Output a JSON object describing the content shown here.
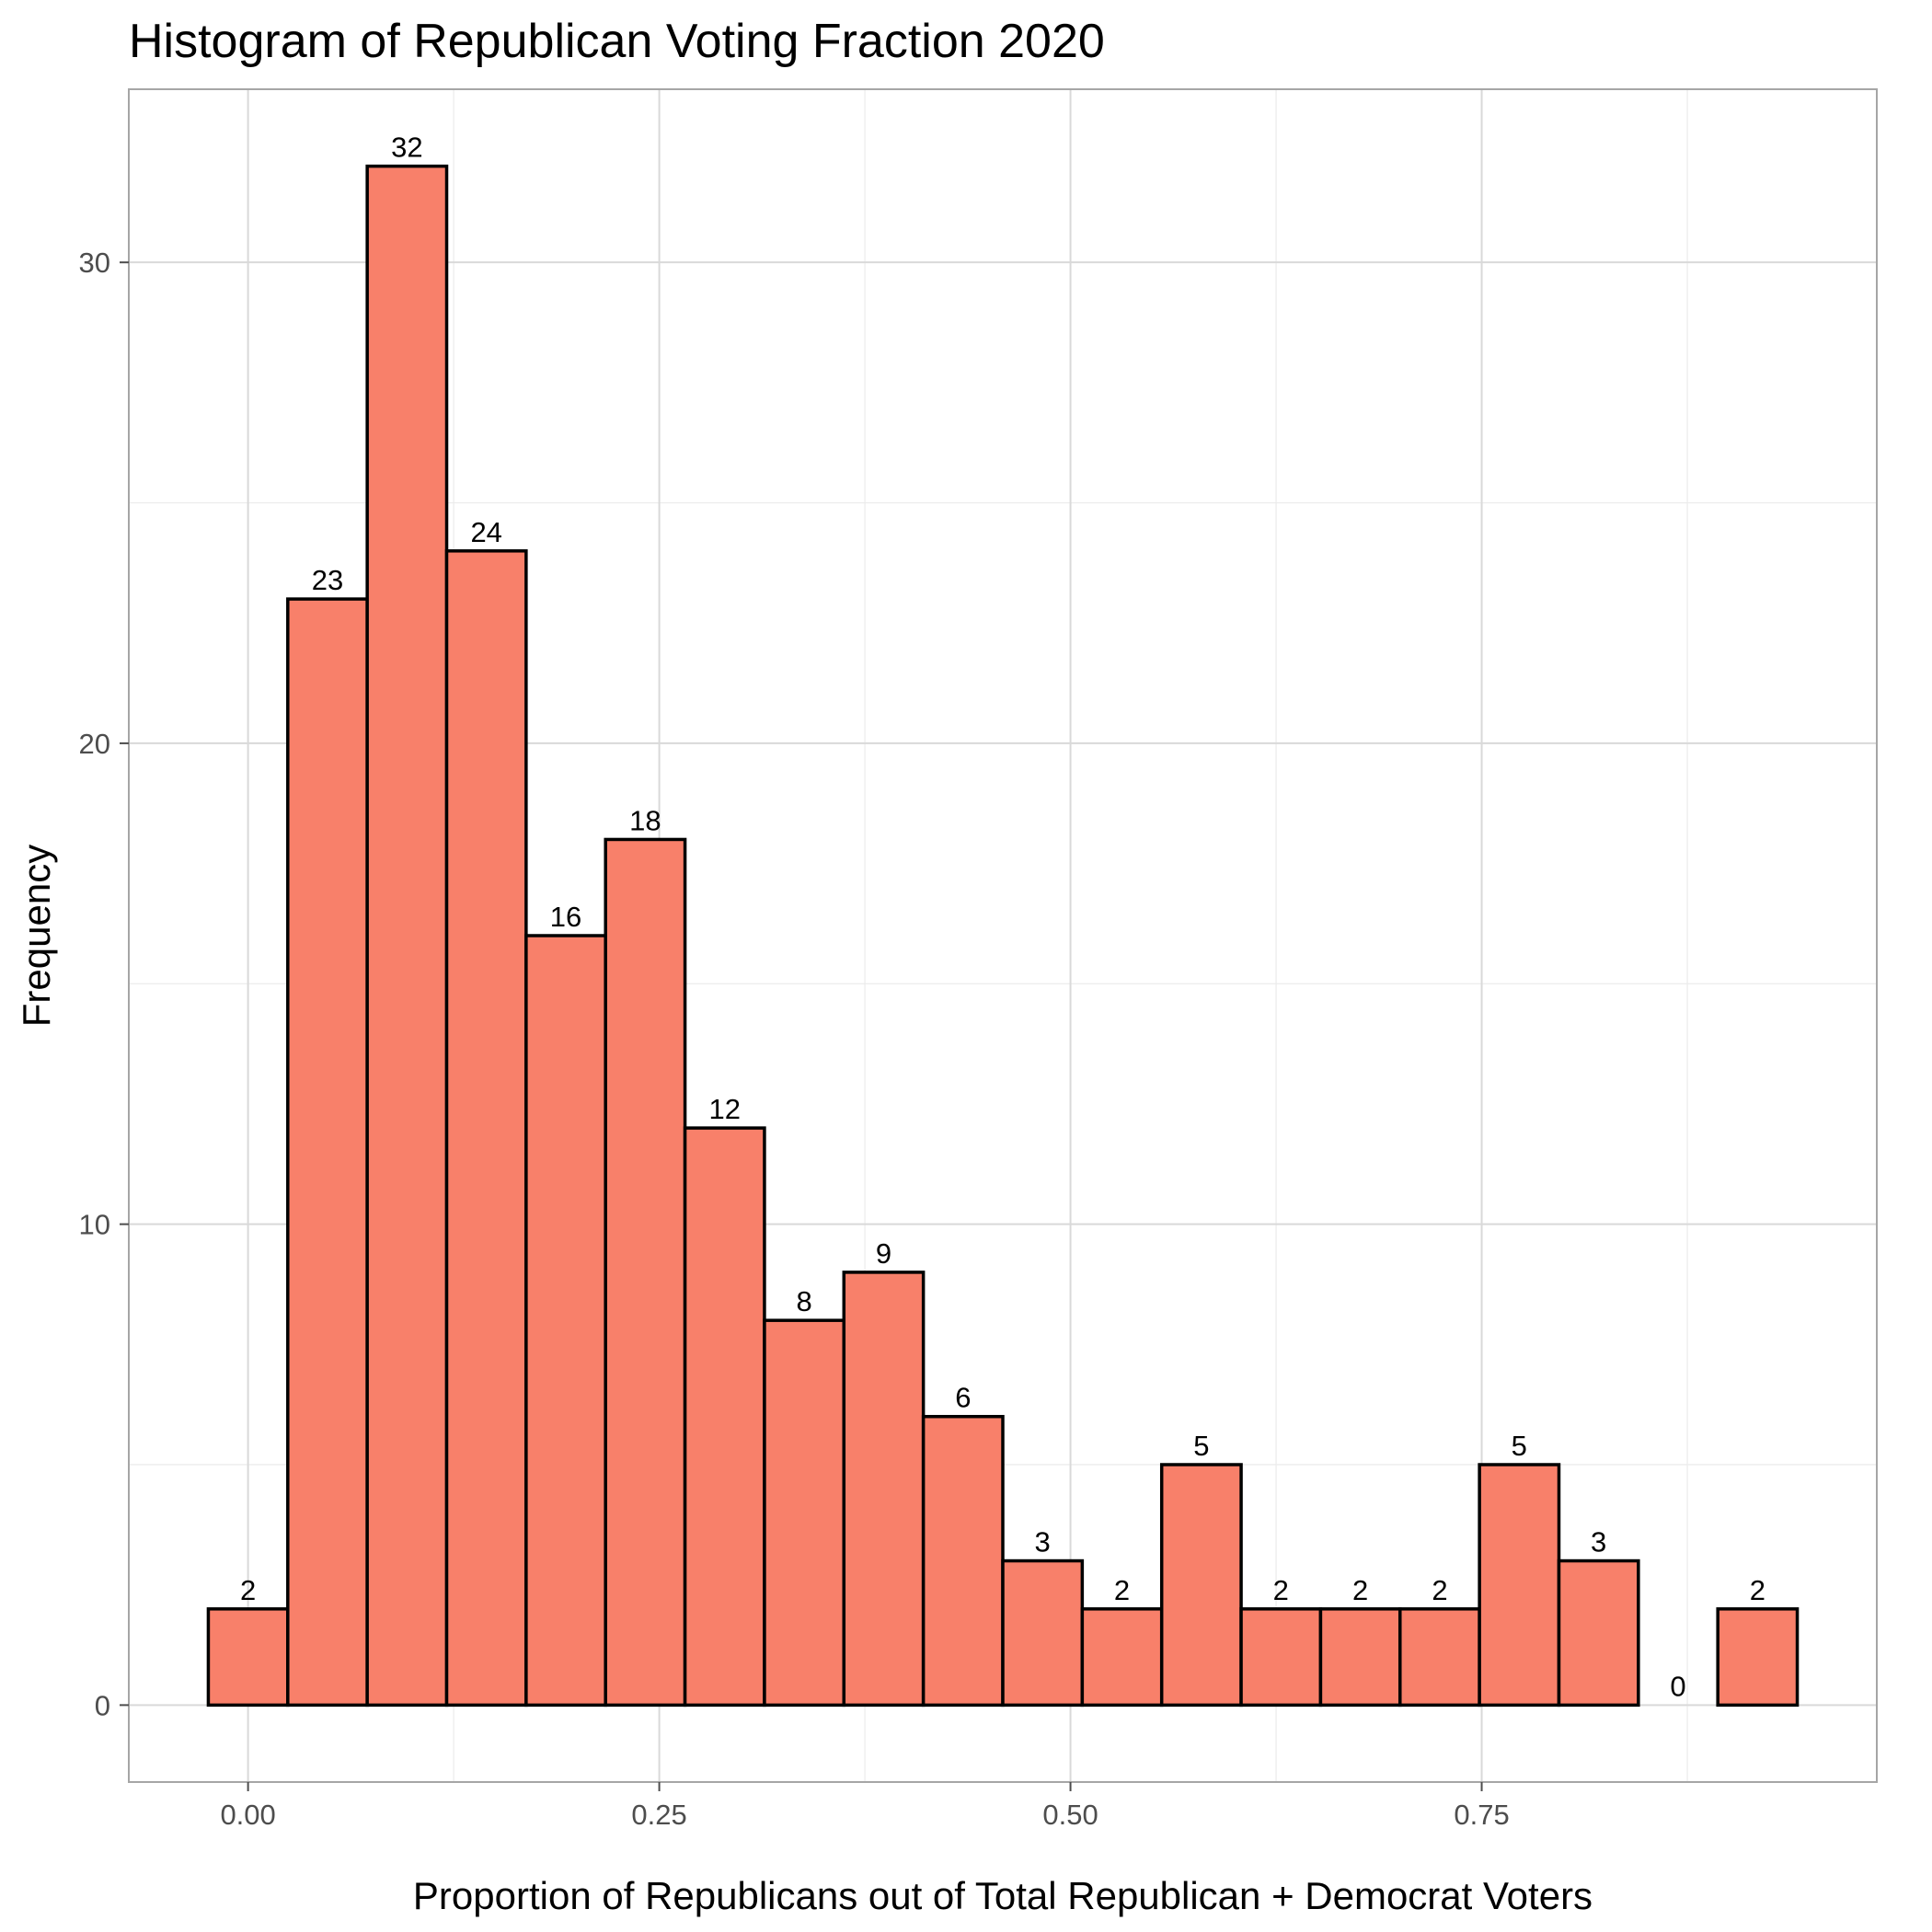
{
  "colors": {
    "bar_fill": "#F8806A",
    "bar_stroke": "#000000",
    "grid_major": "#D9D9D9",
    "grid_minor": "#EBEBEB",
    "panel_border": "#A6A6A6",
    "tick_text": "#4D4D4D"
  },
  "chart_data": {
    "type": "bar",
    "subtype": "histogram",
    "title": "Histogram of Republican Voting Fraction 2020",
    "xlabel": "Proportion of Republicans out of Total Republican + Democrat Voters",
    "ylabel": "Frequency",
    "bin_width": 0.0483,
    "bin_centers": [
      0.0,
      0.0483,
      0.0966,
      0.1449,
      0.1932,
      0.2415,
      0.2898,
      0.3381,
      0.3864,
      0.4347,
      0.483,
      0.5313,
      0.5796,
      0.6279,
      0.6762,
      0.7245,
      0.7728,
      0.8211,
      0.8694,
      0.9177
    ],
    "values": [
      2,
      23,
      32,
      24,
      16,
      18,
      12,
      8,
      9,
      6,
      3,
      2,
      5,
      2,
      2,
      2,
      5,
      3,
      0,
      2
    ],
    "data_labels": [
      "2",
      "23",
      "32",
      "24",
      "16",
      "18",
      "12",
      "8",
      "9",
      "6",
      "3",
      "2",
      "5",
      "2",
      "2",
      "2",
      "5",
      "3",
      "0",
      "2"
    ],
    "xlim": [
      -0.0725,
      0.9902
    ],
    "ylim": [
      -1.6,
      33.6
    ],
    "x_ticks": [
      0.0,
      0.25,
      0.5,
      0.75
    ],
    "x_tick_labels": [
      "0.00",
      "0.25",
      "0.50",
      "0.75"
    ],
    "x_minor_ticks": [
      0.125,
      0.375,
      0.625,
      0.875
    ],
    "y_ticks": [
      0,
      10,
      20,
      30
    ],
    "y_tick_labels": [
      "0",
      "10",
      "20",
      "30"
    ],
    "y_minor_ticks": [
      5,
      15,
      25
    ],
    "grid": true,
    "legend": "none"
  }
}
